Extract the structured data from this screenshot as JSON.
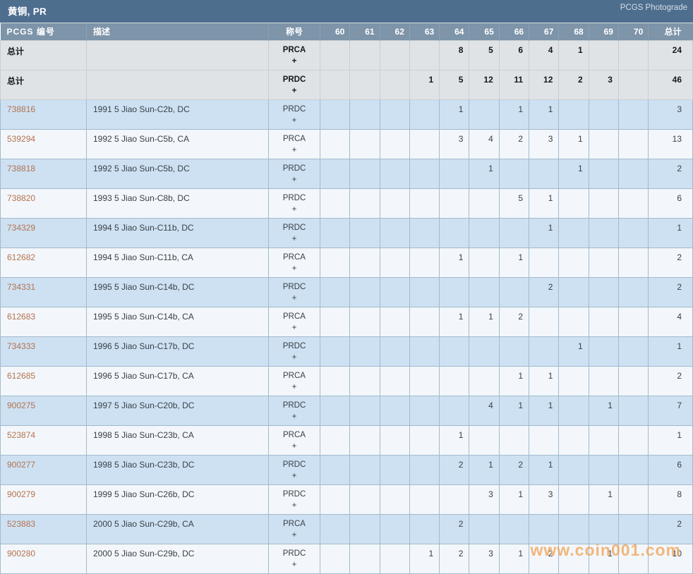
{
  "title_bar": {
    "title": "黄铜, PR",
    "right_label": "PCGS Photograde"
  },
  "watermark": "www.coin001.com",
  "colors": {
    "header_bar": "#4e6e8e",
    "column_header": "#7d94a9",
    "row_blue": "#cde1f3",
    "row_white": "#f3f7fb",
    "row_total": "#e0e3e6",
    "link": "#b5724f",
    "watermark": "#f2a75c"
  },
  "table": {
    "columns": [
      "PCGS 编号",
      "描述",
      "称号",
      "60",
      "61",
      "62",
      "63",
      "64",
      "65",
      "66",
      "67",
      "68",
      "69",
      "70",
      "总计"
    ],
    "grade_keys": [
      "60",
      "61",
      "62",
      "63",
      "64",
      "65",
      "66",
      "67",
      "68",
      "69",
      "70"
    ],
    "rows": [
      {
        "label": "总计",
        "description": "",
        "designation": "PRCA",
        "plus": "+",
        "is_total": true,
        "grades": {
          "64": 8,
          "65": 5,
          "66": 6,
          "67": 4,
          "68": 1
        },
        "total": 24
      },
      {
        "label": "总计",
        "description": "",
        "designation": "PRDC",
        "plus": "+",
        "is_total": true,
        "grades": {
          "63": 1,
          "64": 5,
          "65": 12,
          "66": 11,
          "67": 12,
          "68": 2,
          "69": 3
        },
        "total": 46
      },
      {
        "label": "738816",
        "description": "1991 5 Jiao Sun-C2b, DC",
        "designation": "PRDC",
        "plus": "+",
        "is_total": false,
        "grades": {
          "64": 1,
          "66": 1,
          "67": 1
        },
        "total": 3
      },
      {
        "label": "539294",
        "description": "1992 5 Jiao Sun-C5b, CA",
        "designation": "PRCA",
        "plus": "+",
        "is_total": false,
        "grades": {
          "64": 3,
          "65": 4,
          "66": 2,
          "67": 3,
          "68": 1
        },
        "total": 13
      },
      {
        "label": "738818",
        "description": "1992 5 Jiao Sun-C5b, DC",
        "designation": "PRDC",
        "plus": "+",
        "is_total": false,
        "grades": {
          "65": 1,
          "68": 1
        },
        "total": 2
      },
      {
        "label": "738820",
        "description": "1993 5 Jiao Sun-C8b, DC",
        "designation": "PRDC",
        "plus": "+",
        "is_total": false,
        "grades": {
          "66": 5,
          "67": 1
        },
        "total": 6
      },
      {
        "label": "734329",
        "description": "1994 5 Jiao Sun-C11b, DC",
        "designation": "PRDC",
        "plus": "+",
        "is_total": false,
        "grades": {
          "67": 1
        },
        "total": 1
      },
      {
        "label": "612682",
        "description": "1994 5 Jiao Sun-C11b, CA",
        "designation": "PRCA",
        "plus": "+",
        "is_total": false,
        "grades": {
          "64": 1,
          "66": 1
        },
        "total": 2
      },
      {
        "label": "734331",
        "description": "1995 5 Jiao Sun-C14b, DC",
        "designation": "PRDC",
        "plus": "+",
        "is_total": false,
        "grades": {
          "67": 2
        },
        "total": 2
      },
      {
        "label": "612683",
        "description": "1995 5 Jiao Sun-C14b, CA",
        "designation": "PRCA",
        "plus": "+",
        "is_total": false,
        "grades": {
          "64": 1,
          "65": 1,
          "66": 2
        },
        "total": 4
      },
      {
        "label": "734333",
        "description": "1996 5 Jiao Sun-C17b, DC",
        "designation": "PRDC",
        "plus": "+",
        "is_total": false,
        "grades": {
          "68": 1
        },
        "total": 1
      },
      {
        "label": "612685",
        "description": "1996 5 Jiao Sun-C17b, CA",
        "designation": "PRCA",
        "plus": "+",
        "is_total": false,
        "grades": {
          "66": 1,
          "67": 1
        },
        "total": 2
      },
      {
        "label": "900275",
        "description": "1997 5 Jiao Sun-C20b, DC",
        "designation": "PRDC",
        "plus": "+",
        "is_total": false,
        "grades": {
          "65": 4,
          "66": 1,
          "67": 1,
          "69": 1
        },
        "total": 7
      },
      {
        "label": "523874",
        "description": "1998 5 Jiao Sun-C23b, CA",
        "designation": "PRCA",
        "plus": "+",
        "is_total": false,
        "grades": {
          "64": 1
        },
        "total": 1
      },
      {
        "label": "900277",
        "description": "1998 5 Jiao Sun-C23b, DC",
        "designation": "PRDC",
        "plus": "+",
        "is_total": false,
        "grades": {
          "64": 2,
          "65": 1,
          "66": 2,
          "67": 1
        },
        "total": 6
      },
      {
        "label": "900279",
        "description": "1999 5 Jiao Sun-C26b, DC",
        "designation": "PRDC",
        "plus": "+",
        "is_total": false,
        "grades": {
          "65": 3,
          "66": 1,
          "67": 3,
          "69": 1
        },
        "total": 8
      },
      {
        "label": "523883",
        "description": "2000 5 Jiao Sun-C29b, CA",
        "designation": "PRCA",
        "plus": "+",
        "is_total": false,
        "grades": {
          "64": 2
        },
        "total": 2
      },
      {
        "label": "900280",
        "description": "2000 5 Jiao Sun-C29b, DC",
        "designation": "PRDC",
        "plus": "+",
        "is_total": false,
        "grades": {
          "63": 1,
          "64": 2,
          "65": 3,
          "66": 1,
          "67": 2,
          "69": 1
        },
        "total": 10
      }
    ]
  }
}
